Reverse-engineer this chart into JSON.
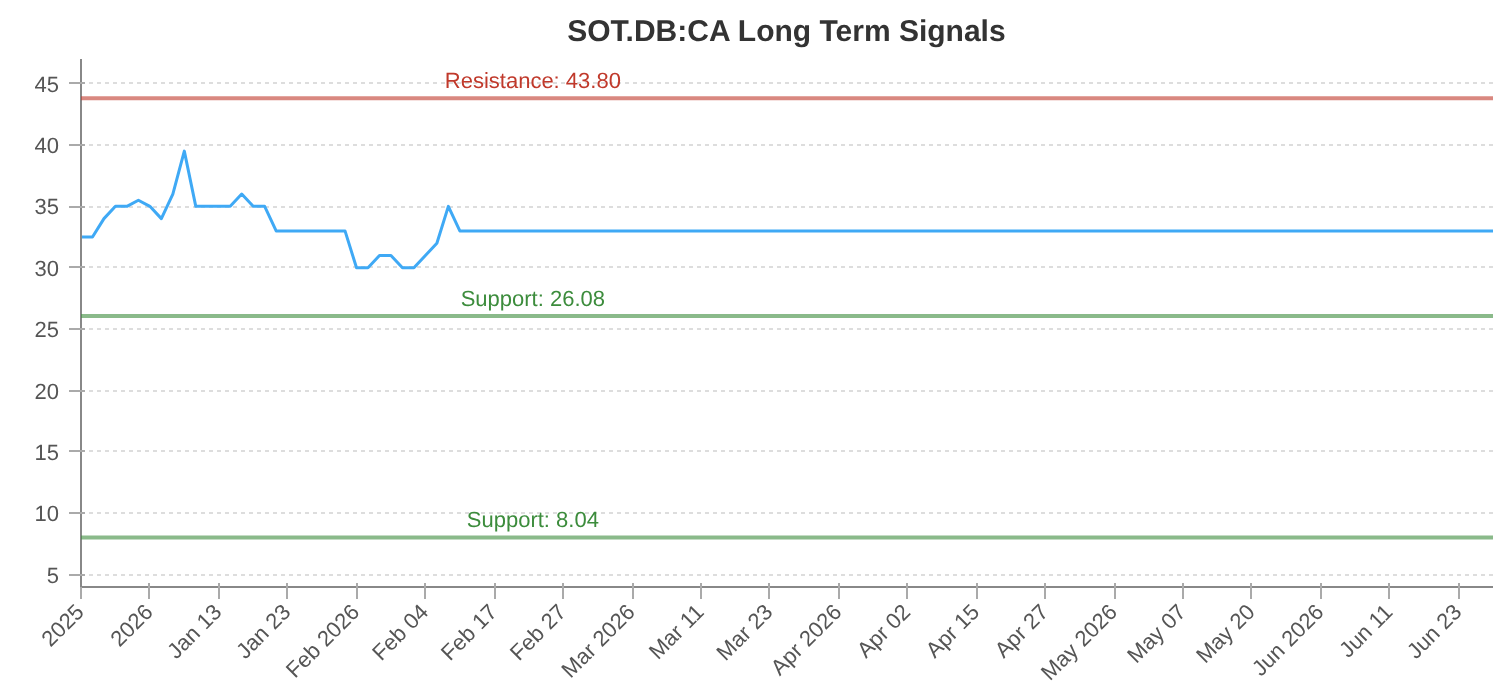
{
  "chart_data": {
    "type": "line",
    "title": "SOT.DB:CA Long Term Signals",
    "categories": [
      "2025",
      null,
      null,
      null,
      null,
      null,
      "2026",
      null,
      null,
      null,
      null,
      null,
      "Jan 13",
      null,
      null,
      null,
      null,
      null,
      "Jan 23",
      null,
      null,
      null,
      null,
      null,
      "Feb 2026",
      null,
      null,
      null,
      null,
      null,
      "Feb 04",
      null,
      null,
      null,
      null,
      null,
      "Feb 17",
      null,
      null,
      null,
      null,
      null,
      "Feb 27",
      null,
      null,
      null,
      null,
      null,
      "Mar 2026",
      null,
      null,
      null,
      null,
      null,
      "Mar 11",
      null,
      null,
      null,
      null,
      null,
      "Mar 23",
      null,
      null,
      null,
      null,
      null,
      "Apr 2026",
      null,
      null,
      null,
      null,
      null,
      "Apr 02",
      null,
      null,
      null,
      null,
      null,
      "Apr 15",
      null,
      null,
      null,
      null,
      null,
      "Apr 27",
      null,
      null,
      null,
      null,
      null,
      "May 2026",
      null,
      null,
      null,
      null,
      null,
      "May 07",
      null,
      null,
      null,
      null,
      null,
      "May 20",
      null,
      null,
      null,
      null,
      null,
      "Jun 2026",
      null,
      null,
      null,
      null,
      null,
      "Jun 11",
      null,
      null,
      null,
      null,
      null,
      "Jun 23",
      null,
      null,
      null
    ],
    "series": [
      {
        "color": "#3fa9f5",
        "values": [
          32.5,
          32.5,
          34,
          35,
          35,
          35.5,
          35,
          34,
          36,
          39.5,
          35,
          35,
          35,
          35,
          36,
          35,
          35,
          33,
          33,
          33,
          33,
          33,
          33,
          33,
          30,
          30,
          31,
          31,
          30,
          30,
          31,
          32,
          35,
          33,
          33,
          33,
          33,
          33,
          33,
          33,
          33,
          33,
          33,
          33,
          33,
          33,
          33,
          33,
          33,
          33,
          33,
          33,
          33,
          33,
          33,
          33,
          33,
          33,
          33,
          33,
          33,
          33,
          33,
          33,
          33,
          33,
          33,
          33,
          33,
          33,
          33,
          33,
          33,
          33,
          33,
          33,
          33,
          33,
          33,
          33,
          33,
          33,
          33,
          33,
          33,
          33,
          33,
          33,
          33,
          33,
          33,
          33,
          33,
          33,
          33,
          33,
          33,
          33,
          33,
          33,
          33,
          33,
          33,
          33,
          33,
          33,
          33,
          33,
          33,
          33,
          33,
          33,
          33,
          33,
          33,
          33,
          33,
          33,
          33,
          33,
          33,
          33,
          33,
          33
        ]
      }
    ],
    "ylim": [
      4,
      47
    ],
    "yticks": [
      5,
      10,
      15,
      20,
      25,
      30,
      35,
      40,
      45
    ],
    "grid": "y",
    "ref_lines": [
      {
        "axis": "y",
        "value": 43.8,
        "label": "Resistance: 43.80",
        "color": "#c0392b"
      },
      {
        "axis": "y",
        "value": 26.08,
        "label": "Support: 26.08",
        "color": "#3c8c3c"
      },
      {
        "axis": "y",
        "value": 8.04,
        "label": "Support: 8.04",
        "color": "#3c8c3c"
      }
    ]
  }
}
